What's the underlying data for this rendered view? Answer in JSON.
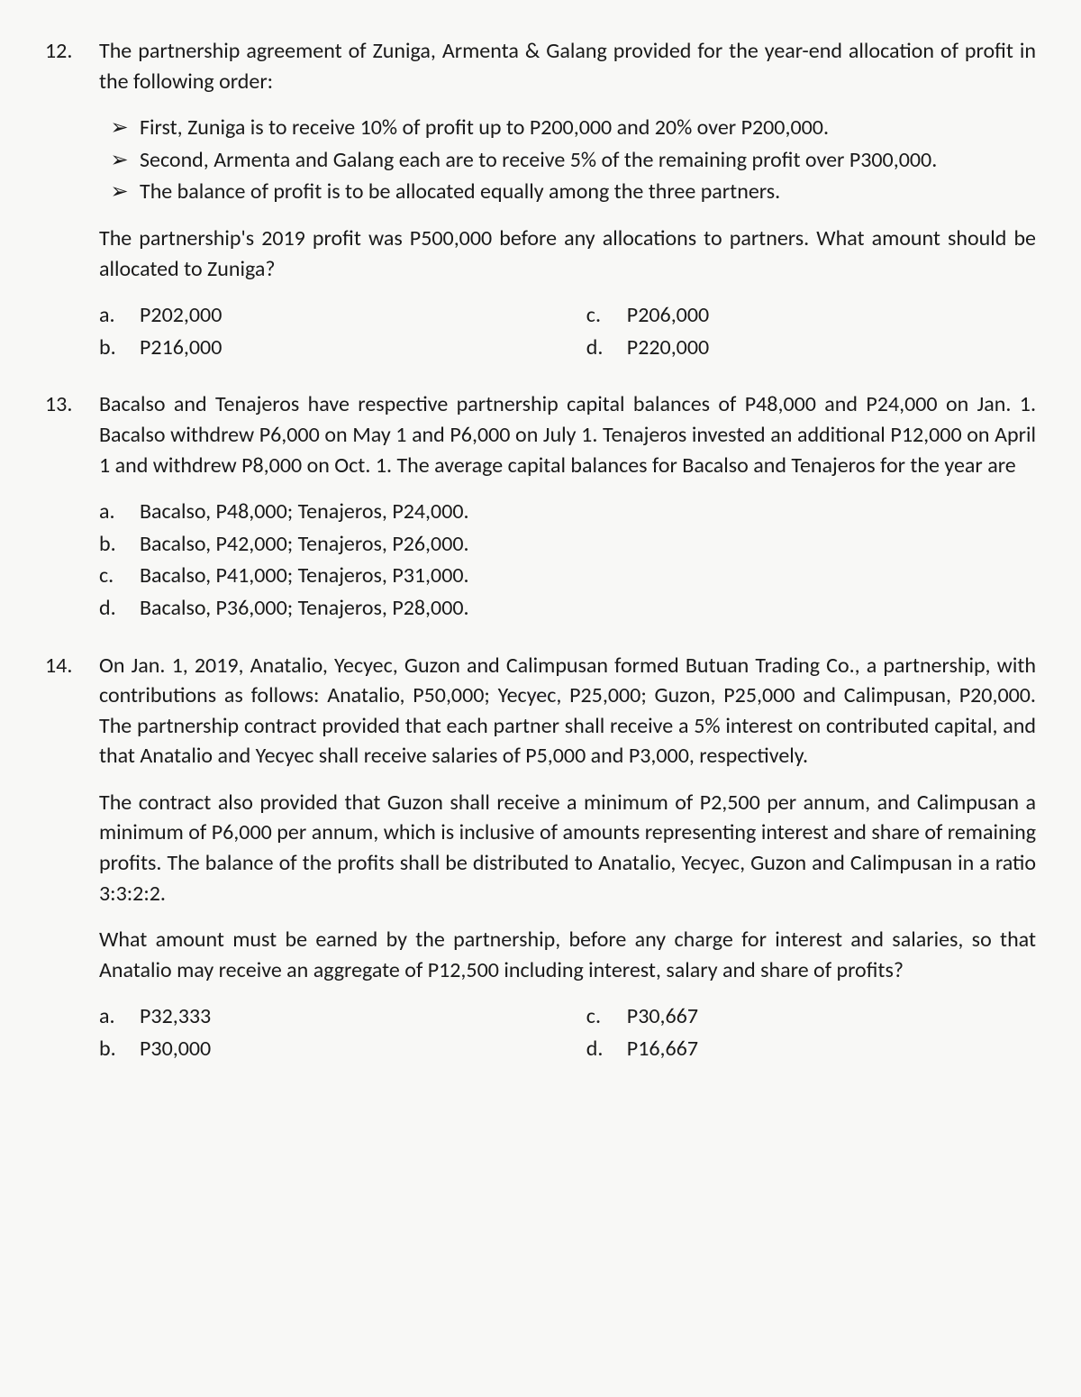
{
  "typography": {
    "fontFamily": "Calibri, Arial, sans-serif",
    "fontSizePt": 18,
    "textColor": "#1a1a1a",
    "backgroundColor": "#f8f8f6",
    "lineHeight": 1.4,
    "textAlign": "justify"
  },
  "questions": [
    {
      "number": "12.",
      "para1": "The partnership agreement of Zuniga, Armenta & Galang provided for the year-end allocation of profit in the following order:",
      "bullets": [
        "First, Zuniga is to receive 10% of profit up to P200,000 and 20% over P200,000.",
        "Second, Armenta and Galang each are to receive 5% of the remaining profit over P300,000.",
        "The balance of profit is to be allocated equally among the three partners."
      ],
      "para2": "The partnership's 2019 profit was P500,000 before any allocations to partners. What amount should be allocated to Zuniga?",
      "choicesLeft": [
        {
          "letter": "a.",
          "text": "P202,000"
        },
        {
          "letter": "b.",
          "text": "P216,000"
        }
      ],
      "choicesRight": [
        {
          "letter": "c.",
          "text": "P206,000"
        },
        {
          "letter": "d.",
          "text": "P220,000"
        }
      ]
    },
    {
      "number": "13.",
      "para1": "Bacalso and Tenajeros have respective partnership capital balances of P48,000 and P24,000 on Jan. 1.  Bacalso withdrew P6,000 on May 1 and P6,000 on July 1. Tenajeros invested an additional P12,000 on April 1 and withdrew P8,000 on Oct. 1. The average capital balances for Bacalso and Tenajeros for the year are",
      "choicesSingle": [
        {
          "letter": "a.",
          "text": "Bacalso, P48,000; Tenajeros, P24,000."
        },
        {
          "letter": "b.",
          "text": "Bacalso, P42,000; Tenajeros, P26,000."
        },
        {
          "letter": "c.",
          "text": "Bacalso, P41,000; Tenajeros, P31,000."
        },
        {
          "letter": "d.",
          "text": "Bacalso, P36,000; Tenajeros, P28,000."
        }
      ]
    },
    {
      "number": "14.",
      "para1": "On Jan. 1, 2019, Anatalio, Yecyec, Guzon and Calimpusan formed Butuan Trading Co., a partnership, with contributions as follows: Anatalio, P50,000; Yecyec, P25,000; Guzon, P25,000 and Calimpusan, P20,000.  The partnership contract provided that each partner shall receive a 5% interest on contributed capital, and that Anatalio and Yecyec shall receive salaries of P5,000 and P3,000, respectively.",
      "para2": "The contract also provided that Guzon shall receive a minimum of P2,500 per annum, and Calimpusan a minimum of P6,000 per annum, which is inclusive of amounts representing interest and share of remaining profits.  The balance of the profits shall be distributed to Anatalio, Yecyec, Guzon and Calimpusan in a ratio 3:3:2:2.",
      "para3": "What amount must be earned by the partnership, before any charge for interest and salaries, so that Anatalio may receive an aggregate of P12,500 including interest, salary and share of profits?",
      "choicesLeft": [
        {
          "letter": "a.",
          "text": "P32,333"
        },
        {
          "letter": "b.",
          "text": "P30,000"
        }
      ],
      "choicesRight": [
        {
          "letter": "c.",
          "text": "P30,667"
        },
        {
          "letter": "d.",
          "text": "P16,667"
        }
      ]
    }
  ]
}
